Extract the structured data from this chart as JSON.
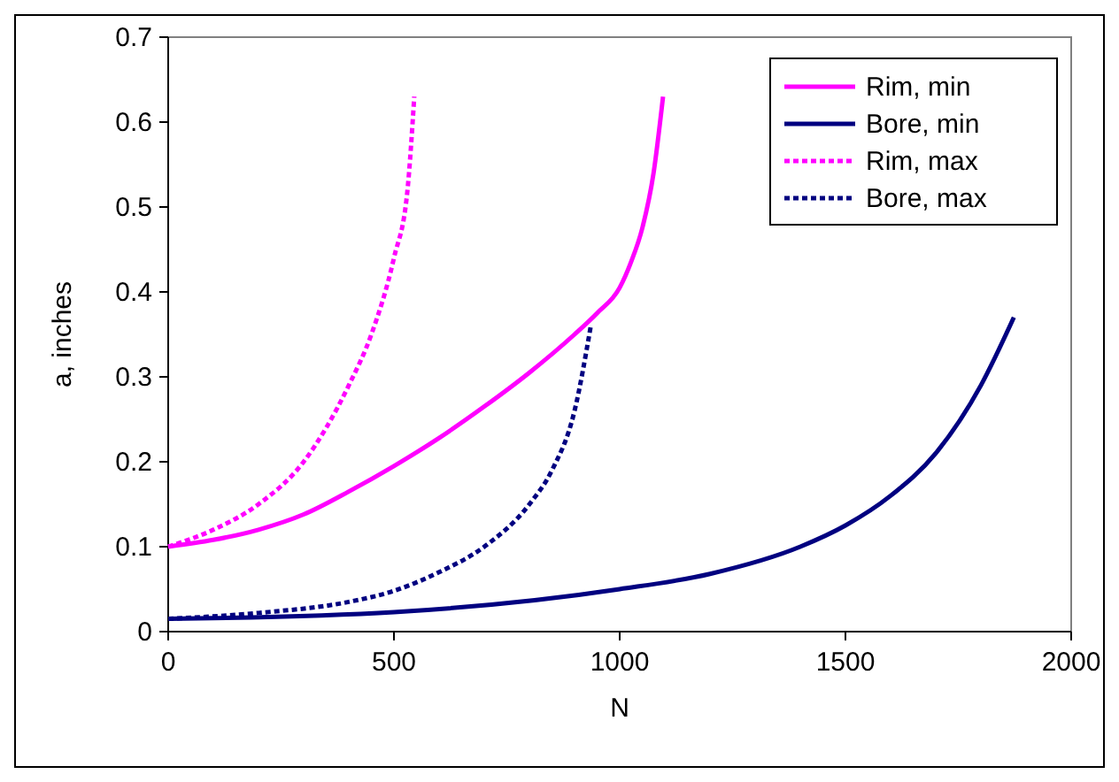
{
  "chart_data": {
    "type": "line",
    "xlabel": "N",
    "ylabel": "a, inches",
    "xlim": [
      0,
      2000
    ],
    "ylim": [
      0,
      0.7
    ],
    "xticks": [
      0,
      500,
      1000,
      1500,
      2000
    ],
    "yticks": [
      0,
      0.1,
      0.2,
      0.3,
      0.4,
      0.5,
      0.6,
      0.7
    ],
    "grid": false,
    "legend": "top right",
    "series": [
      {
        "name": "Rim, min",
        "color": "#ff00ff",
        "line_style": "solid",
        "x": [
          0,
          100,
          200,
          300,
          400,
          500,
          600,
          700,
          800,
          900,
          950,
          1000,
          1025,
          1050,
          1075,
          1096
        ],
        "values": [
          0.1,
          0.108,
          0.12,
          0.138,
          0.165,
          0.195,
          0.228,
          0.265,
          0.305,
          0.35,
          0.375,
          0.405,
          0.435,
          0.475,
          0.54,
          0.63
        ]
      },
      {
        "name": "Bore, min",
        "color": "#000080",
        "line_style": "solid",
        "x": [
          0,
          500,
          1000,
          1200,
          1400,
          1500,
          1600,
          1700,
          1800,
          1873
        ],
        "values": [
          0.015,
          0.023,
          0.05,
          0.068,
          0.1,
          0.125,
          0.16,
          0.21,
          0.29,
          0.37
        ]
      },
      {
        "name": "Rim, max",
        "color": "#ff00ff",
        "line_style": "dashed",
        "x": [
          0,
          100,
          200,
          300,
          350,
          400,
          450,
          500,
          530,
          545
        ],
        "values": [
          0.1,
          0.12,
          0.15,
          0.2,
          0.24,
          0.29,
          0.35,
          0.44,
          0.52,
          0.63
        ]
      },
      {
        "name": "Bore, max",
        "color": "#000080",
        "line_style": "dashed",
        "x": [
          0,
          200,
          400,
          500,
          600,
          700,
          800,
          850,
          900,
          936
        ],
        "values": [
          0.015,
          0.022,
          0.035,
          0.048,
          0.07,
          0.1,
          0.15,
          0.19,
          0.26,
          0.36
        ]
      }
    ]
  }
}
